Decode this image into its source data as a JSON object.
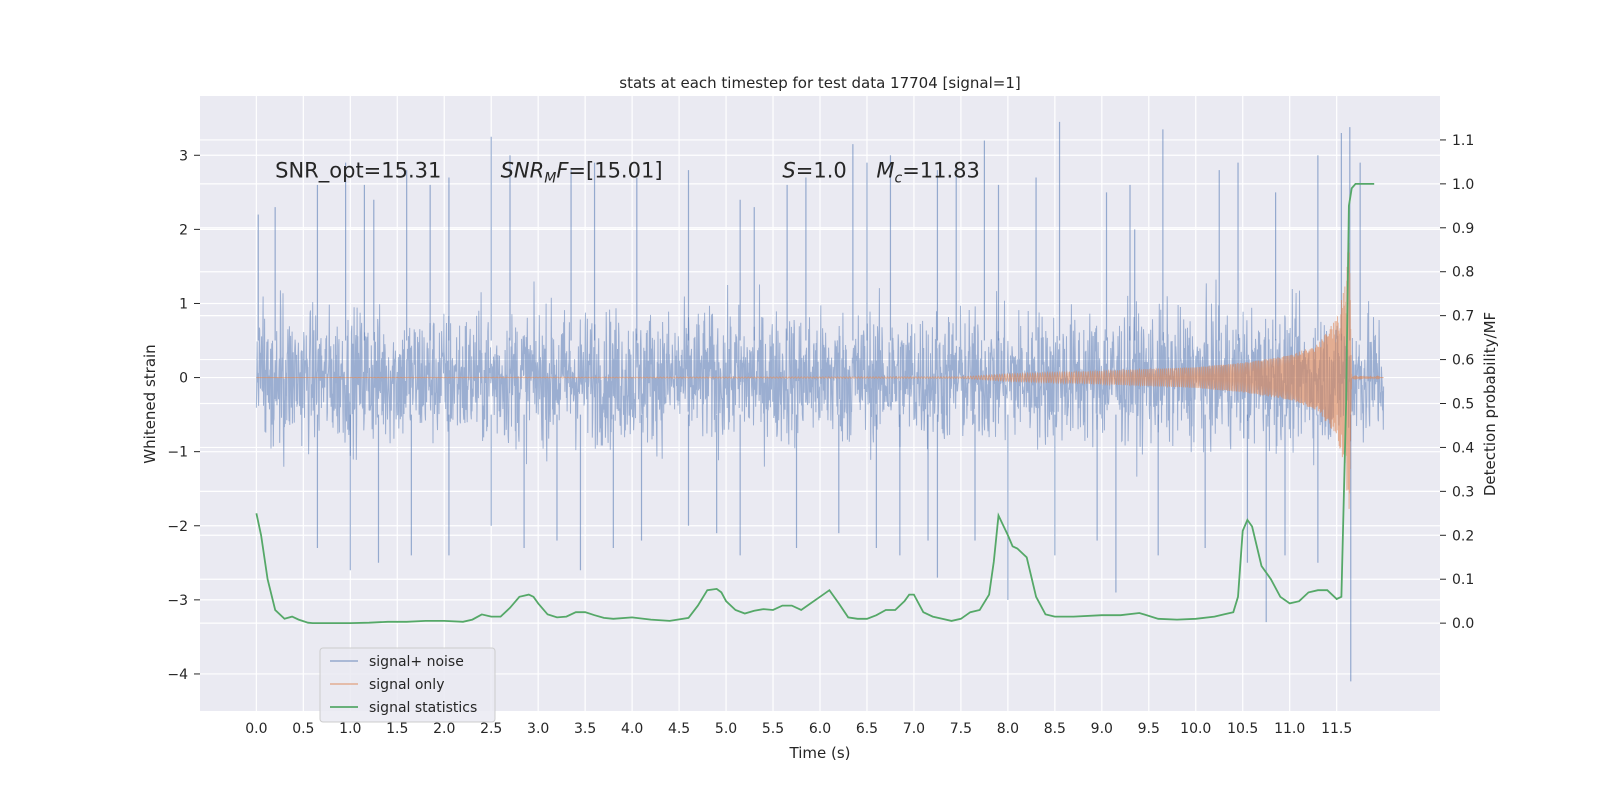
{
  "chart_data": {
    "type": "line",
    "title": "stats at each timestep for test data 17704 [signal=1]",
    "xlabel": "Time (s)",
    "ylabel_left": "Whitened strain",
    "ylabel_right": "Detection probability/MF",
    "xlim": [
      -0.6,
      12.6
    ],
    "ylim_left": [
      -4.5,
      3.8
    ],
    "ylim_right": [
      -0.2,
      1.2
    ],
    "x_ticks": [
      0.0,
      0.5,
      1.0,
      1.5,
      2.0,
      2.5,
      3.0,
      3.5,
      4.0,
      4.5,
      5.0,
      5.5,
      6.0,
      6.5,
      7.0,
      7.5,
      8.0,
      8.5,
      9.0,
      9.5,
      10.0,
      10.5,
      11.0,
      11.5
    ],
    "x_tick_labels": [
      "0.0",
      "0.5",
      "1.0",
      "1.5",
      "2.0",
      "2.5",
      "3.0",
      "3.5",
      "4.0",
      "4.5",
      "5.0",
      "5.5",
      "6.0",
      "6.5",
      "7.0",
      "7.5",
      "8.0",
      "8.5",
      "9.0",
      "9.5",
      "10.0",
      "10.5",
      "11.0",
      "11.5"
    ],
    "y_left_ticks": [
      3,
      2,
      1,
      0,
      -1,
      -2,
      -3,
      -4
    ],
    "y_left_tick_labels": [
      "3",
      "2",
      "1",
      "0",
      "−1",
      "−2",
      "−3",
      "−4"
    ],
    "y_right_ticks": [
      1.1,
      1.0,
      0.9,
      0.8,
      0.7,
      0.6,
      0.5,
      0.4,
      0.3,
      0.2,
      0.1,
      0.0
    ],
    "y_right_tick_labels": [
      "1.1",
      "1.0",
      "0.9",
      "0.8",
      "0.7",
      "0.6",
      "0.5",
      "0.4",
      "0.3",
      "0.2",
      "0.1",
      "0.0"
    ],
    "grid": true,
    "legend_position": "lower-left",
    "series": [
      {
        "name": "signal+ noise",
        "color": "#4c72b0",
        "axis": "left",
        "description_style": "dense noise",
        "x_range": [
          0.0,
          12.0
        ],
        "peaks_x": [
          0.02,
          0.2,
          0.65,
          0.95,
          1.15,
          1.25,
          1.6,
          1.85,
          2.05,
          2.5,
          2.7,
          3.35,
          3.6,
          4.05,
          4.6,
          5.15,
          5.3,
          5.65,
          5.85,
          6.35,
          6.5,
          6.75,
          7.25,
          7.45,
          7.75,
          7.9,
          8.3,
          8.55,
          9.05,
          9.3,
          9.35,
          9.65,
          10.25,
          10.45,
          10.85,
          11.3,
          11.55,
          11.64,
          11.75
        ],
        "peaks_y": [
          2.2,
          2.3,
          2.6,
          2.9,
          2.6,
          2.4,
          2.8,
          2.6,
          2.7,
          3.25,
          3.0,
          2.8,
          2.9,
          2.7,
          2.8,
          2.4,
          2.3,
          2.6,
          2.7,
          3.15,
          2.9,
          3.0,
          2.8,
          2.9,
          3.2,
          2.6,
          2.7,
          3.45,
          2.5,
          2.6,
          2.0,
          3.35,
          2.8,
          2.9,
          2.5,
          3.0,
          3.3,
          3.38,
          2.9
        ],
        "troughs_x": [
          0.65,
          1.0,
          1.3,
          1.65,
          2.05,
          2.5,
          2.85,
          3.2,
          3.45,
          3.8,
          4.1,
          4.6,
          4.9,
          5.15,
          5.75,
          6.2,
          6.6,
          6.85,
          7.15,
          7.25,
          7.65,
          8.0,
          8.5,
          8.95,
          9.15,
          9.6,
          10.1,
          10.55,
          10.75,
          10.95,
          11.3,
          11.65
        ],
        "troughs_y": [
          -2.3,
          -2.6,
          -2.5,
          -2.4,
          -2.4,
          -2.0,
          -2.3,
          -2.2,
          -2.6,
          -2.3,
          -2.2,
          -2.0,
          -2.1,
          -2.4,
          -2.3,
          -2.1,
          -2.3,
          -2.4,
          -2.2,
          -2.7,
          -2.2,
          -3.0,
          -2.4,
          -2.2,
          -2.9,
          -2.4,
          -2.3,
          -2.5,
          -3.3,
          -2.4,
          -2.5,
          -4.1
        ]
      },
      {
        "name": "signal only",
        "color": "#dd8452",
        "axis": "left",
        "description_style": "chirp",
        "x_range": [
          0.0,
          12.0
        ],
        "merger_x": 11.63,
        "envelope_x": [
          0.0,
          7.5,
          8.0,
          9.0,
          10.0,
          10.5,
          11.0,
          11.3,
          11.5,
          11.6,
          11.63,
          11.66,
          12.0
        ],
        "envelope_y": [
          0.0,
          0.01,
          0.05,
          0.09,
          0.14,
          0.2,
          0.3,
          0.45,
          0.8,
          1.3,
          2.1,
          0.03,
          0.0
        ]
      },
      {
        "name": "signal statistics",
        "color": "#55a868",
        "axis": "right",
        "x": [
          0.0,
          0.05,
          0.12,
          0.2,
          0.3,
          0.38,
          0.45,
          0.55,
          0.6,
          0.7,
          0.8,
          1.0,
          1.2,
          1.4,
          1.6,
          1.8,
          2.0,
          2.2,
          2.3,
          2.4,
          2.5,
          2.6,
          2.7,
          2.8,
          2.9,
          2.95,
          3.0,
          3.1,
          3.2,
          3.3,
          3.4,
          3.5,
          3.6,
          3.7,
          3.8,
          4.0,
          4.2,
          4.4,
          4.6,
          4.7,
          4.8,
          4.9,
          4.95,
          5.0,
          5.1,
          5.2,
          5.3,
          5.4,
          5.5,
          5.6,
          5.7,
          5.8,
          5.9,
          6.0,
          6.1,
          6.2,
          6.3,
          6.4,
          6.5,
          6.6,
          6.7,
          6.8,
          6.9,
          6.95,
          7.0,
          7.1,
          7.2,
          7.3,
          7.4,
          7.5,
          7.6,
          7.7,
          7.8,
          7.85,
          7.9,
          8.0,
          8.05,
          8.1,
          8.2,
          8.3,
          8.4,
          8.5,
          8.7,
          9.0,
          9.2,
          9.4,
          9.6,
          9.8,
          10.0,
          10.2,
          10.3,
          10.4,
          10.45,
          10.5,
          10.55,
          10.6,
          10.7,
          10.8,
          10.9,
          11.0,
          11.1,
          11.2,
          11.3,
          11.4,
          11.5,
          11.55,
          11.6,
          11.63,
          11.66,
          11.7,
          11.75,
          11.8,
          11.9
        ],
        "y": [
          0.25,
          0.2,
          0.1,
          0.03,
          0.01,
          0.015,
          0.008,
          0.001,
          0.0,
          0.0,
          0.0,
          0.0,
          0.001,
          0.003,
          0.003,
          0.005,
          0.005,
          0.003,
          0.008,
          0.02,
          0.015,
          0.015,
          0.035,
          0.06,
          0.065,
          0.06,
          0.045,
          0.02,
          0.013,
          0.015,
          0.025,
          0.025,
          0.018,
          0.012,
          0.01,
          0.013,
          0.008,
          0.005,
          0.012,
          0.04,
          0.075,
          0.078,
          0.07,
          0.05,
          0.03,
          0.022,
          0.028,
          0.032,
          0.03,
          0.04,
          0.04,
          0.03,
          0.045,
          0.06,
          0.075,
          0.045,
          0.013,
          0.01,
          0.01,
          0.018,
          0.03,
          0.03,
          0.05,
          0.065,
          0.065,
          0.025,
          0.015,
          0.01,
          0.005,
          0.01,
          0.025,
          0.03,
          0.065,
          0.14,
          0.245,
          0.2,
          0.175,
          0.17,
          0.15,
          0.06,
          0.02,
          0.015,
          0.015,
          0.018,
          0.018,
          0.023,
          0.01,
          0.008,
          0.01,
          0.015,
          0.02,
          0.025,
          0.06,
          0.21,
          0.235,
          0.22,
          0.13,
          0.1,
          0.06,
          0.045,
          0.05,
          0.07,
          0.075,
          0.075,
          0.055,
          0.06,
          0.5,
          0.95,
          0.99,
          1.0,
          1.0,
          1.0,
          1.0
        ]
      }
    ],
    "annotations": [
      {
        "x": 0.2,
        "y": 2.7,
        "parts": [
          {
            "t": "SNR_opt=15.31",
            "style": "normal"
          }
        ]
      },
      {
        "x": 2.6,
        "y": 2.7,
        "parts": [
          {
            "t": "SNR",
            "style": "italic"
          },
          {
            "t": "M",
            "style": "italic-sub"
          },
          {
            "t": "F",
            "style": "italic"
          },
          {
            "t": "=[15.01]",
            "style": "normal"
          }
        ]
      },
      {
        "x": 5.6,
        "y": 2.7,
        "parts": [
          {
            "t": "S",
            "style": "italic"
          },
          {
            "t": "=1.0",
            "style": "normal"
          }
        ]
      },
      {
        "x": 6.6,
        "y": 2.7,
        "parts": [
          {
            "t": "M",
            "style": "italic"
          },
          {
            "t": "c",
            "style": "italic-sub"
          },
          {
            "t": "=11.83",
            "style": "normal"
          }
        ]
      }
    ]
  }
}
